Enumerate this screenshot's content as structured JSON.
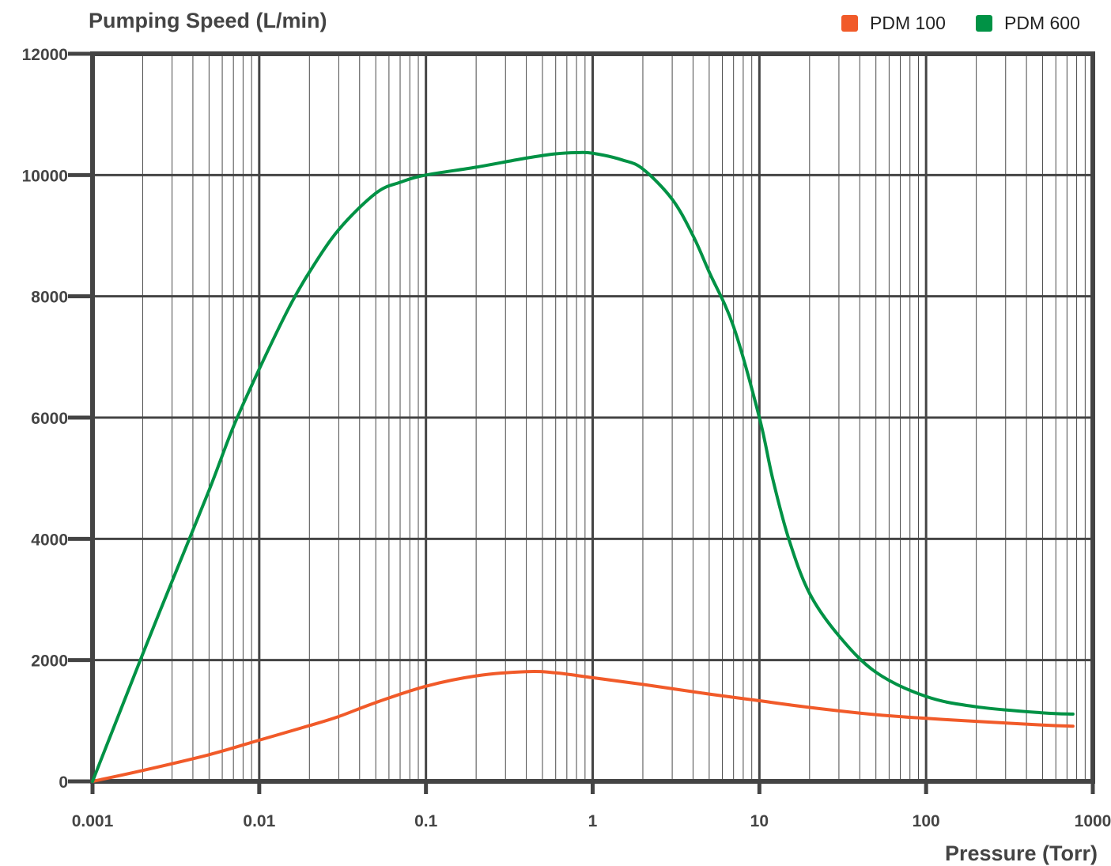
{
  "chart_data": {
    "type": "line",
    "title": "",
    "ylabel": "Pumping Speed (L/min)",
    "xlabel": "Pressure (Torr)",
    "x_scale": "log",
    "xlim": [
      0.001,
      1000
    ],
    "ylim": [
      0,
      12000
    ],
    "x_tick_labels": [
      "0.001",
      "0.01",
      "0.1",
      "1",
      "10",
      "100",
      "1000"
    ],
    "x_ticks": [
      0.001,
      0.01,
      0.1,
      1,
      10,
      100,
      1000
    ],
    "y_tick_labels": [
      "0",
      "2000",
      "4000",
      "6000",
      "8000",
      "10000",
      "12000"
    ],
    "y_ticks": [
      0,
      2000,
      4000,
      6000,
      8000,
      10000,
      12000
    ],
    "grid": true,
    "minor_grid": true,
    "legend_position": "top-right",
    "series": [
      {
        "name": "PDM 100",
        "color": "#f15a29",
        "x": [
          0.001,
          0.002,
          0.005,
          0.01,
          0.02,
          0.03,
          0.05,
          0.1,
          0.2,
          0.4,
          0.6,
          1,
          2,
          5,
          10,
          20,
          50,
          100,
          200,
          500,
          760
        ],
        "y": [
          0,
          180,
          440,
          680,
          920,
          1070,
          1300,
          1570,
          1740,
          1810,
          1790,
          1710,
          1600,
          1440,
          1330,
          1220,
          1100,
          1040,
          990,
          930,
          910
        ]
      },
      {
        "name": "PDM 600",
        "color": "#009245",
        "x": [
          0.001,
          0.002,
          0.003,
          0.005,
          0.007,
          0.01,
          0.015,
          0.02,
          0.03,
          0.05,
          0.07,
          0.1,
          0.2,
          0.4,
          0.6,
          0.8,
          1,
          1.5,
          2,
          3,
          4,
          5,
          7,
          10,
          12,
          15,
          20,
          30,
          50,
          100,
          200,
          500,
          760
        ],
        "y": [
          0,
          2100,
          3300,
          4800,
          5850,
          6800,
          7800,
          8400,
          9100,
          9700,
          9880,
          10000,
          10130,
          10280,
          10350,
          10370,
          10360,
          10250,
          10100,
          9600,
          9000,
          8400,
          7500,
          6000,
          5000,
          4000,
          3100,
          2400,
          1800,
          1400,
          1230,
          1130,
          1110
        ]
      }
    ]
  }
}
